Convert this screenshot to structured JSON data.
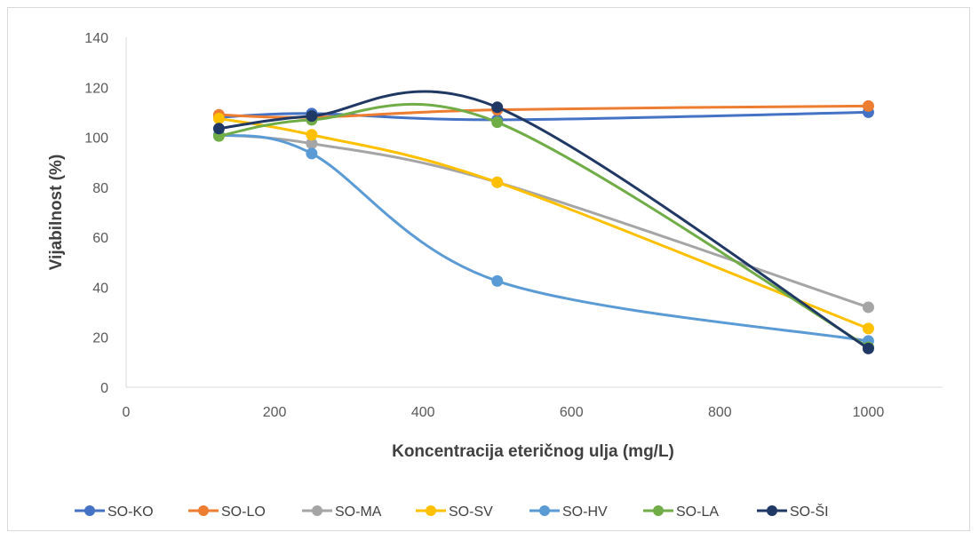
{
  "chart_data": {
    "type": "line",
    "title": "",
    "xlabel": "Koncentracija eteričnog ulja (mg/L)",
    "ylabel": "Vijabilnost (%)",
    "xlim": [
      0,
      1100
    ],
    "ylim": [
      0,
      140
    ],
    "xticks": [
      0,
      200,
      400,
      600,
      800,
      1000
    ],
    "yticks": [
      0,
      20,
      40,
      60,
      80,
      100,
      120,
      140
    ],
    "grid": false,
    "smooth": true,
    "legend_position": "bottom",
    "x": [
      125,
      250,
      500,
      1000
    ],
    "series": [
      {
        "name": "SO-KO",
        "color": "#4472c4",
        "values": [
          108,
          109.5,
          107,
          110
        ]
      },
      {
        "name": "SO-LO",
        "color": "#ed7d31",
        "values": [
          109,
          108,
          111,
          112.5
        ]
      },
      {
        "name": "SO-MA",
        "color": "#a5a5a5",
        "values": [
          101,
          97.5,
          82,
          32
        ]
      },
      {
        "name": "SO-SV",
        "color": "#ffc000",
        "values": [
          107.5,
          101,
          82,
          23.5
        ]
      },
      {
        "name": "SO-HV",
        "color": "#5b9bd5",
        "values": [
          101,
          93.5,
          42.5,
          18.5
        ]
      },
      {
        "name": "SO-LA",
        "color": "#70ad47",
        "values": [
          100.5,
          107,
          106,
          16
        ]
      },
      {
        "name": "SO-ŠI",
        "color": "#203864",
        "values": [
          103.5,
          108.5,
          112,
          15.5
        ]
      }
    ]
  }
}
